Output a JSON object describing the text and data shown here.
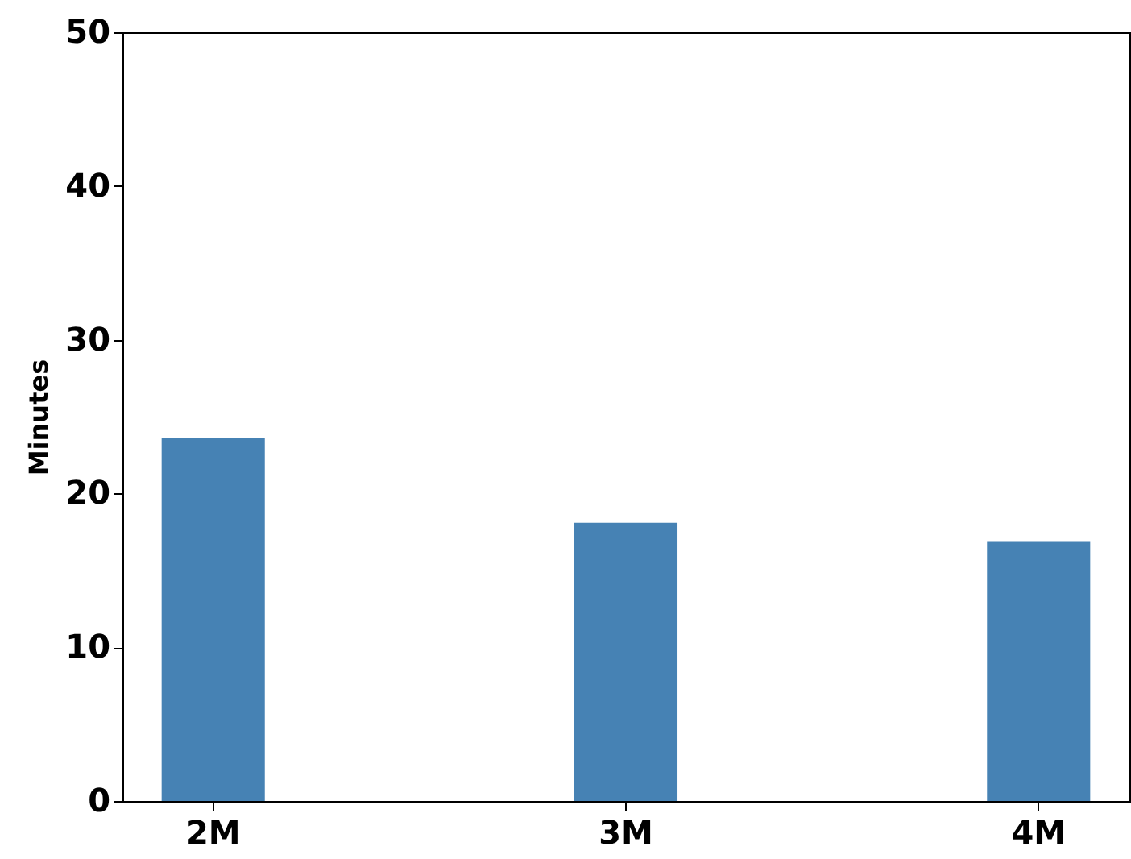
{
  "chart_data": {
    "type": "bar",
    "ylabel": "Minutes",
    "categories": [
      "2M",
      "3M",
      "4M"
    ],
    "values": [
      23.6,
      18.1,
      16.9
    ],
    "color": "#4682b4",
    "ylim": [
      0,
      50
    ],
    "yticks": [
      0,
      10,
      20,
      30,
      40,
      50
    ],
    "grid": false
  }
}
